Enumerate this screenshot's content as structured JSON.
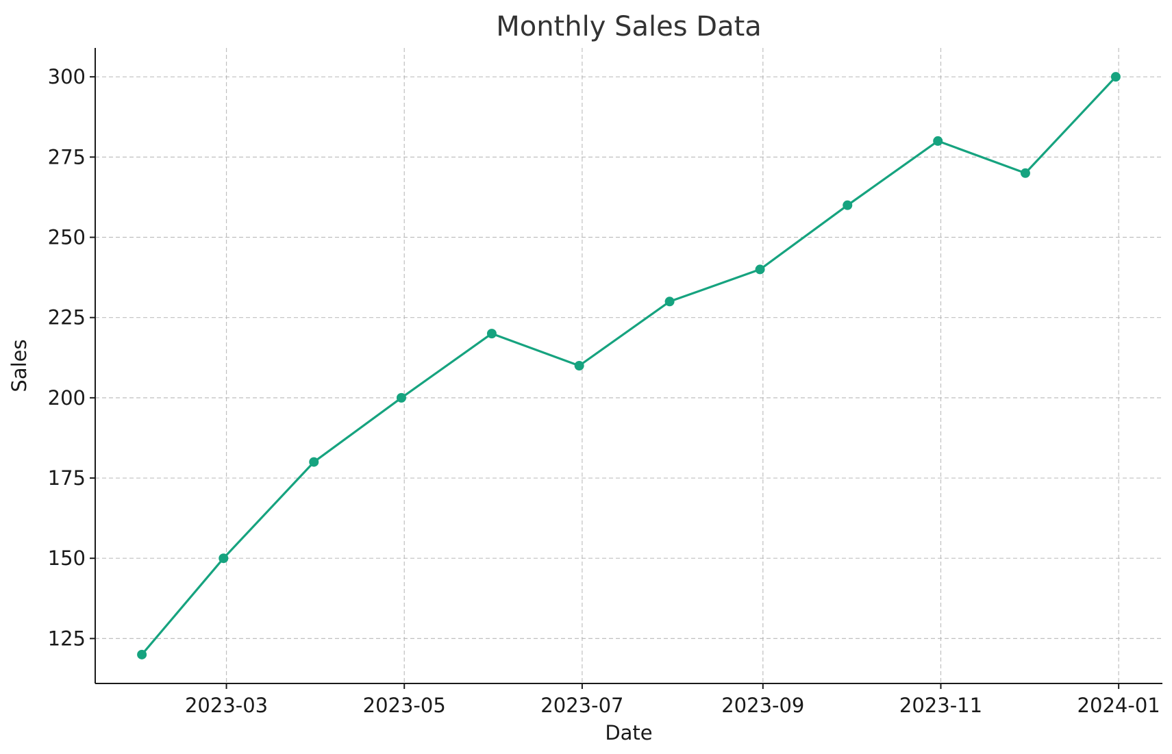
{
  "chart_data": {
    "type": "line",
    "title": "Monthly Sales Data",
    "xlabel": "Date",
    "ylabel": "Sales",
    "x": [
      "2023-01-31",
      "2023-02-28",
      "2023-03-31",
      "2023-04-30",
      "2023-05-31",
      "2023-06-30",
      "2023-07-31",
      "2023-08-31",
      "2023-09-30",
      "2023-10-31",
      "2023-11-30",
      "2023-12-31"
    ],
    "series": [
      {
        "values": [
          120,
          150,
          180,
          200,
          220,
          210,
          230,
          240,
          260,
          280,
          270,
          300
        ],
        "color": "#16a37f",
        "marker": "circle"
      }
    ],
    "xlim": [
      "2023-01-15",
      "2024-01-16"
    ],
    "ylim": [
      111,
      309
    ],
    "x_ticks": [
      "2023-03-01",
      "2023-05-01",
      "2023-07-01",
      "2023-09-01",
      "2023-11-01",
      "2024-01-01"
    ],
    "x_tick_labels": [
      "2023-03",
      "2023-05",
      "2023-07",
      "2023-09",
      "2023-11",
      "2024-01"
    ],
    "y_ticks": [
      125,
      150,
      175,
      200,
      225,
      250,
      275,
      300
    ],
    "y_tick_labels": [
      "125",
      "150",
      "175",
      "200",
      "225",
      "250",
      "275",
      "300"
    ],
    "grid": true,
    "grid_style": "dashed"
  }
}
